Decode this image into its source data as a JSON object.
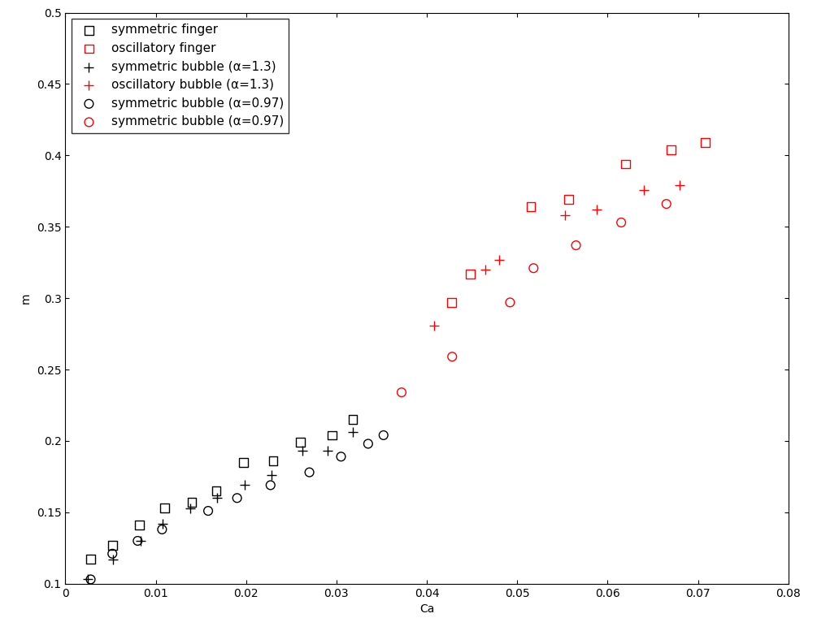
{
  "chart_data": {
    "type": "scatter",
    "x_label": "Ca",
    "y_label": "m",
    "xlim": [
      0,
      0.08
    ],
    "xticks": [
      0,
      0.01,
      0.02,
      0.03,
      0.04,
      0.05,
      0.06,
      0.07,
      0.08
    ],
    "ylim": [
      0.1,
      0.5
    ],
    "yticks": [
      0.1,
      0.15,
      0.2,
      0.25,
      0.3,
      0.35,
      0.4,
      0.45,
      0.5
    ],
    "grid": false,
    "legend": "upper left",
    "series": [
      {
        "name": "symmetric finger",
        "color": "#000000",
        "marker": "square",
        "x": [
          0.0028,
          0.0052,
          0.0082,
          0.011,
          0.014,
          0.0167,
          0.0197,
          0.023,
          0.026,
          0.0295,
          0.0318
        ],
        "values": [
          0.117,
          0.127,
          0.141,
          0.153,
          0.157,
          0.165,
          0.185,
          0.186,
          0.199,
          0.204,
          0.215
        ]
      },
      {
        "name": "oscillatory finger",
        "color": "#ff0000",
        "marker": "square",
        "x": [
          0.0427,
          0.0448,
          0.0515,
          0.0557,
          0.062,
          0.067,
          0.0708
        ],
        "values": [
          0.297,
          0.317,
          0.364,
          0.369,
          0.394,
          0.404,
          0.409
        ]
      },
      {
        "name": "symmetric bubble (α=1.3)",
        "color": "#000000",
        "marker": "plus",
        "x": [
          0.0025,
          0.0053,
          0.0083,
          0.0108,
          0.0138,
          0.0168,
          0.0198,
          0.0228,
          0.0262,
          0.029,
          0.0318
        ],
        "values": [
          0.103,
          0.117,
          0.13,
          0.142,
          0.153,
          0.16,
          0.169,
          0.176,
          0.193,
          0.193,
          0.206
        ]
      },
      {
        "name": "oscillatory bubble (α=1.3)",
        "color": "#ff0000",
        "marker": "plus",
        "x": [
          0.0408,
          0.0465,
          0.048,
          0.0553,
          0.0588,
          0.064,
          0.068
        ],
        "values": [
          0.281,
          0.32,
          0.327,
          0.358,
          0.362,
          0.376,
          0.379
        ]
      },
      {
        "name": "symmetric bubble (α=0.97)",
        "color": "#000000",
        "marker": "circle",
        "x": [
          0.0028,
          0.0052,
          0.008,
          0.0107,
          0.0158,
          0.019,
          0.0227,
          0.027,
          0.0305,
          0.0335,
          0.0352
        ],
        "values": [
          0.103,
          0.121,
          0.13,
          0.138,
          0.151,
          0.16,
          0.169,
          0.178,
          0.189,
          0.198,
          0.204
        ]
      },
      {
        "name": "symmetric bubble (α=0.97)",
        "color": "#ff0000",
        "marker": "circle",
        "x": [
          0.0372,
          0.0428,
          0.0492,
          0.0518,
          0.0565,
          0.0615,
          0.0665
        ],
        "values": [
          0.234,
          0.259,
          0.297,
          0.321,
          0.337,
          0.353,
          0.366
        ]
      }
    ]
  }
}
